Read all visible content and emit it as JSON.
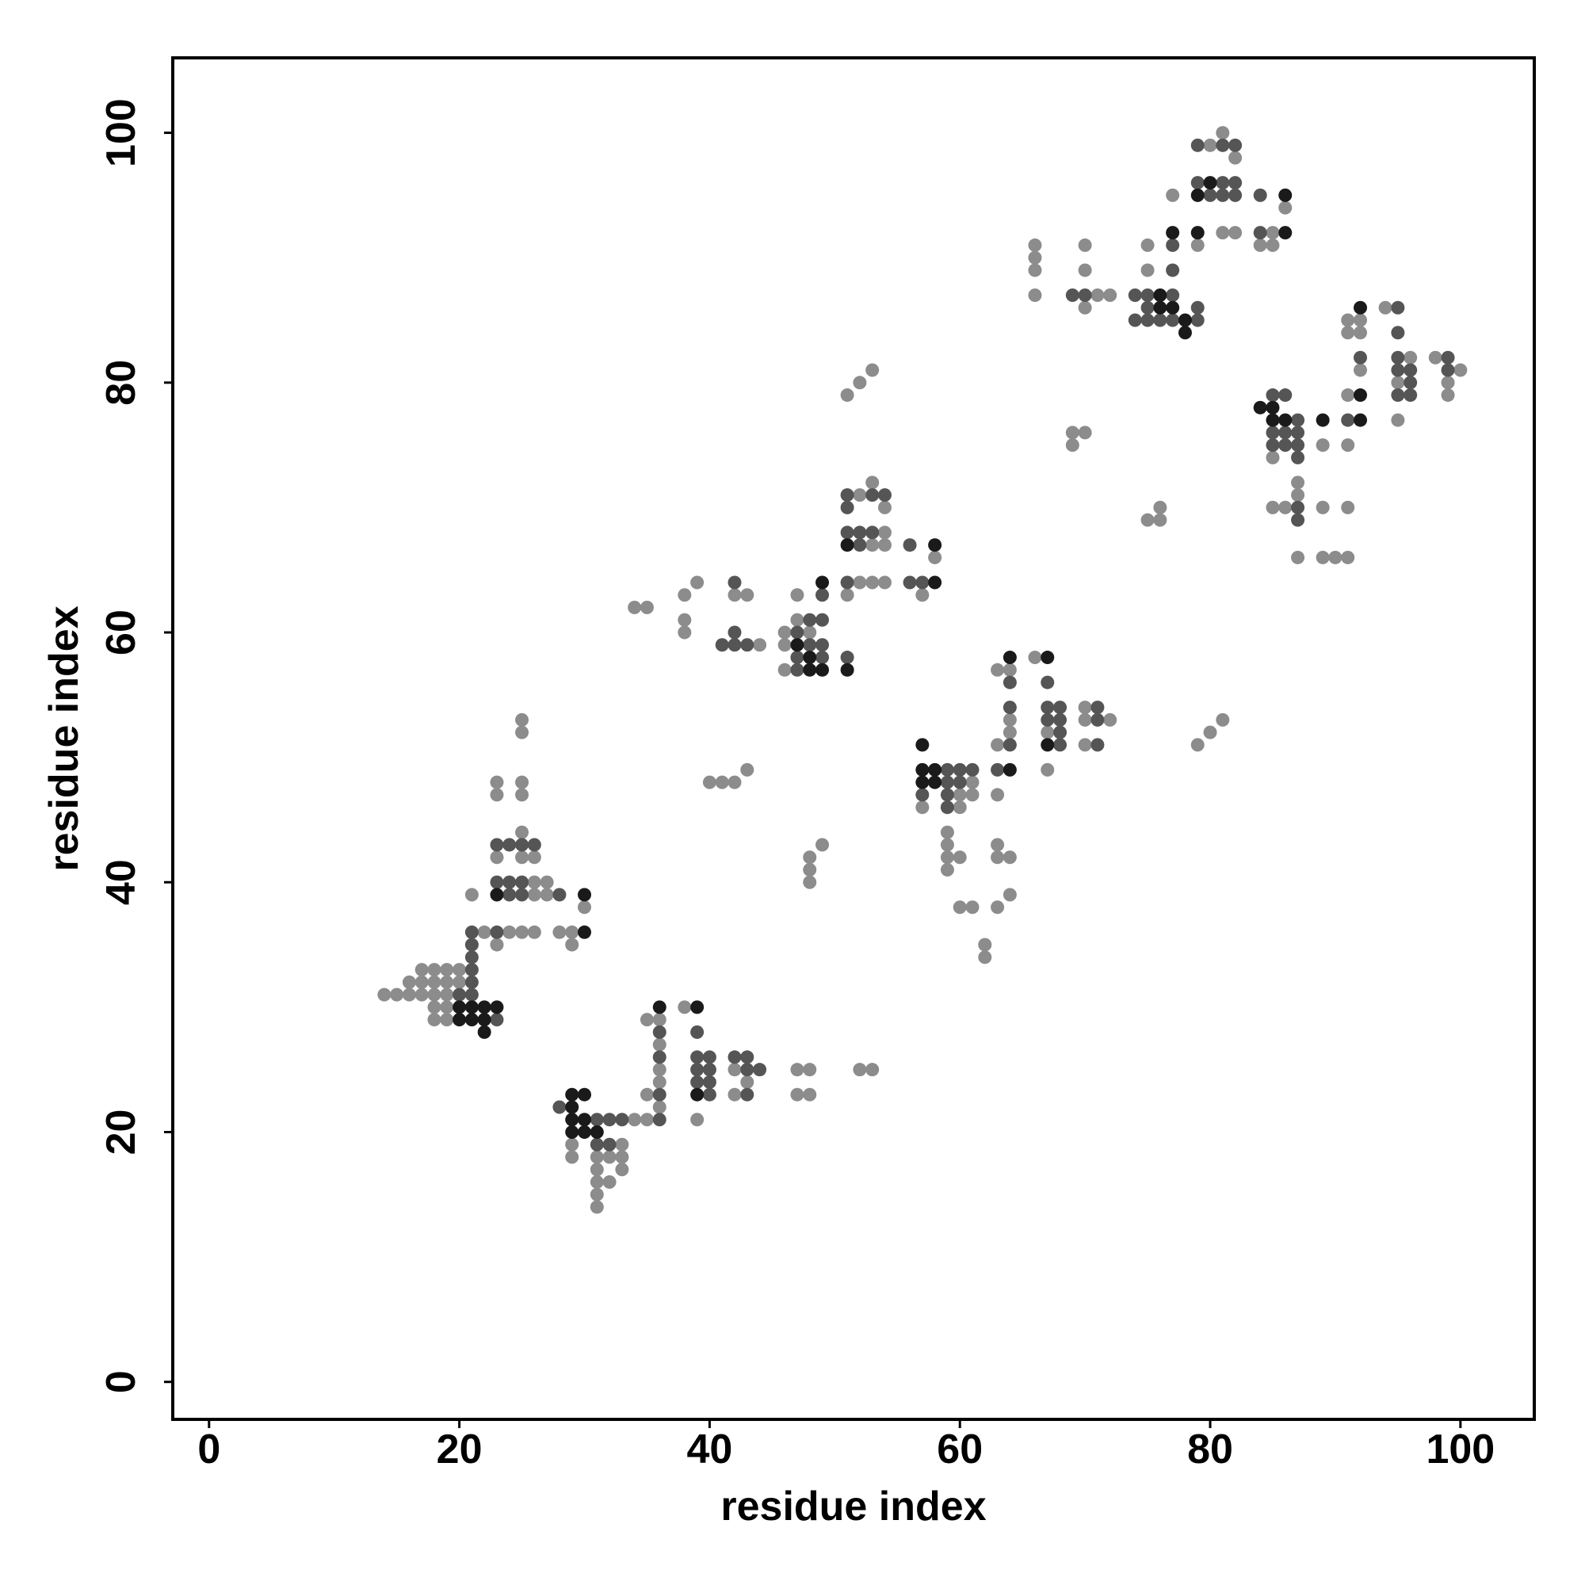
{
  "chart_data": {
    "type": "scatter",
    "xlabel": "residue index",
    "ylabel": "residue index",
    "xlim": [
      -2.9,
      105.9
    ],
    "ylim": [
      -3,
      106
    ],
    "xticks": [
      0,
      20,
      40,
      60,
      80,
      100
    ],
    "yticks": [
      0,
      20,
      40,
      60,
      80,
      100
    ],
    "grid": false,
    "series": [
      {
        "color": "#8c8c8c",
        "x": [
          14,
          15,
          16,
          17,
          18,
          19,
          16,
          17,
          18,
          19,
          20,
          17,
          18,
          19,
          20,
          18,
          19,
          18,
          19,
          22,
          24,
          25,
          26,
          28,
          29,
          29,
          23,
          30,
          26,
          26,
          27,
          27,
          23,
          25,
          26,
          25,
          23,
          23,
          25,
          25,
          25,
          25,
          21,
          29,
          29,
          31,
          32,
          33,
          31,
          33,
          31,
          32,
          31,
          31,
          33,
          34,
          35,
          35,
          36,
          36,
          36,
          36,
          36,
          35,
          38,
          39,
          42,
          42,
          43,
          47,
          48,
          47,
          48,
          52,
          53,
          34,
          35,
          38,
          39,
          38,
          38,
          43,
          42,
          44,
          46,
          46,
          46,
          47,
          47,
          51,
          54,
          53,
          52,
          54,
          53,
          54,
          52,
          53,
          54,
          58,
          57,
          51,
          52,
          53,
          40,
          41,
          42,
          43,
          48,
          48,
          48,
          49,
          48,
          60,
          61,
          61,
          57,
          60,
          59,
          59,
          59,
          59,
          60,
          60,
          61,
          62,
          62,
          63,
          63,
          64,
          64,
          63,
          64,
          63,
          63,
          64,
          63,
          64,
          66,
          67,
          67,
          70,
          70,
          72,
          70,
          79,
          80,
          81,
          69,
          69,
          70,
          75,
          76,
          76,
          66,
          66,
          66,
          66,
          71,
          72,
          70,
          70,
          70,
          75,
          75,
          77,
          79,
          80,
          81,
          82,
          81,
          82,
          85,
          84,
          85,
          86,
          85,
          85,
          86,
          87,
          87,
          87,
          89,
          89,
          89,
          90,
          91,
          91,
          91,
          91,
          92,
          91,
          92,
          91,
          92,
          94,
          96,
          95,
          95,
          98,
          100,
          99,
          99
        ],
        "values": [
          31,
          31,
          31,
          31,
          31,
          31,
          32,
          32,
          32,
          32,
          32,
          33,
          33,
          33,
          33,
          30,
          30,
          29,
          29,
          36,
          36,
          36,
          36,
          36,
          36,
          35,
          35,
          38,
          39,
          40,
          39,
          40,
          42,
          42,
          42,
          44,
          47,
          48,
          47,
          48,
          52,
          53,
          39,
          19,
          18,
          18,
          18,
          18,
          17,
          17,
          16,
          16,
          15,
          14,
          19,
          21,
          21,
          23,
          22,
          24,
          25,
          27,
          29,
          29,
          30,
          21,
          25,
          23,
          24,
          25,
          25,
          23,
          23,
          25,
          25,
          62,
          62,
          63,
          64,
          61,
          60,
          63,
          63,
          59,
          60,
          59,
          57,
          61,
          63,
          63,
          70,
          72,
          71,
          68,
          67,
          67,
          64,
          64,
          64,
          66,
          63,
          79,
          80,
          81,
          48,
          48,
          48,
          49,
          42,
          41,
          40,
          43,
          60,
          47,
          47,
          48,
          46,
          46,
          44,
          43,
          42,
          41,
          42,
          38,
          38,
          35,
          34,
          47,
          51,
          52,
          53,
          57,
          57,
          43,
          42,
          42,
          38,
          39,
          58,
          52,
          49,
          54,
          53,
          53,
          51,
          51,
          52,
          53,
          75,
          76,
          76,
          69,
          69,
          70,
          91,
          90,
          89,
          87,
          87,
          87,
          91,
          89,
          86,
          91,
          89,
          95,
          91,
          99,
          100,
          98,
          92,
          92,
          92,
          91,
          91,
          94,
          74,
          70,
          70,
          72,
          71,
          66,
          75,
          70,
          66,
          66,
          66,
          70,
          75,
          79,
          81,
          84,
          84,
          85,
          85,
          86,
          82,
          80,
          77,
          82,
          81,
          80,
          79
        ]
      },
      {
        "color": "#555555",
        "x": [
          23,
          21,
          20,
          21,
          21,
          21,
          21,
          21,
          23,
          24,
          25,
          24,
          25,
          23,
          23,
          24,
          25,
          26,
          28,
          31,
          32,
          33,
          31,
          32,
          28,
          36,
          36,
          36,
          36,
          39,
          39,
          39,
          39,
          40,
          40,
          40,
          40,
          42,
          43,
          43,
          43,
          44,
          42,
          42,
          41,
          42,
          43,
          48,
          49,
          47,
          48,
          49,
          47,
          49,
          47,
          51,
          49,
          51,
          51,
          51,
          51,
          53,
          54,
          52,
          53,
          52,
          56,
          56,
          57,
          57,
          59,
          60,
          61,
          59,
          60,
          59,
          59,
          64,
          64,
          64,
          67,
          67,
          68,
          67,
          68,
          68,
          68,
          71,
          71,
          71,
          63,
          69,
          70,
          74,
          75,
          77,
          74,
          75,
          76,
          77,
          79,
          75,
          79,
          77,
          77,
          79,
          81,
          82,
          80,
          81,
          82,
          79,
          81,
          82,
          84,
          84,
          85,
          86,
          86,
          87,
          85,
          85,
          86,
          87,
          87,
          87,
          87,
          87,
          95,
          95,
          95,
          96,
          95,
          96,
          95,
          96,
          99,
          99,
          92,
          91
        ],
        "values": [
          29,
          31,
          31,
          32,
          33,
          34,
          35,
          36,
          36,
          39,
          39,
          40,
          40,
          40,
          43,
          43,
          43,
          43,
          39,
          21,
          21,
          21,
          19,
          19,
          22,
          21,
          23,
          26,
          28,
          28,
          26,
          25,
          24,
          26,
          25,
          24,
          23,
          26,
          26,
          25,
          23,
          25,
          64,
          60,
          59,
          59,
          59,
          61,
          61,
          60,
          59,
          59,
          58,
          58,
          57,
          58,
          63,
          64,
          68,
          70,
          71,
          71,
          71,
          68,
          68,
          67,
          67,
          64,
          64,
          47,
          49,
          49,
          49,
          48,
          48,
          47,
          46,
          51,
          54,
          56,
          56,
          54,
          54,
          53,
          53,
          52,
          51,
          54,
          53,
          51,
          49,
          87,
          87,
          87,
          87,
          87,
          85,
          85,
          85,
          85,
          85,
          86,
          86,
          89,
          91,
          96,
          96,
          96,
          95,
          95,
          95,
          99,
          99,
          99,
          95,
          92,
          79,
          79,
          76,
          76,
          76,
          75,
          75,
          75,
          77,
          74,
          70,
          69,
          86,
          84,
          82,
          81,
          81,
          80,
          79,
          79,
          82,
          81,
          82,
          77
        ]
      },
      {
        "color": "#1a1a1a",
        "x": [
          20,
          21,
          22,
          23,
          20,
          21,
          22,
          22,
          29,
          29,
          30,
          29,
          30,
          29,
          30,
          31,
          36,
          39,
          30,
          30,
          23,
          39,
          47,
          48,
          48,
          49,
          51,
          49,
          51,
          58,
          58,
          57,
          58,
          57,
          58,
          57,
          64,
          67,
          64,
          67,
          76,
          77,
          78,
          78,
          76,
          77,
          79,
          79,
          80,
          86,
          86,
          84,
          85,
          85,
          86,
          92,
          92,
          92,
          89
        ],
        "values": [
          30,
          30,
          30,
          30,
          29,
          29,
          29,
          28,
          22,
          23,
          23,
          21,
          21,
          20,
          20,
          20,
          30,
          30,
          36,
          39,
          39,
          23,
          59,
          58,
          57,
          57,
          57,
          64,
          67,
          67,
          64,
          49,
          49,
          48,
          48,
          51,
          58,
          58,
          49,
          51,
          86,
          86,
          85,
          84,
          87,
          92,
          92,
          95,
          96,
          95,
          92,
          78,
          78,
          77,
          77,
          86,
          79,
          77,
          77
        ]
      }
    ]
  }
}
